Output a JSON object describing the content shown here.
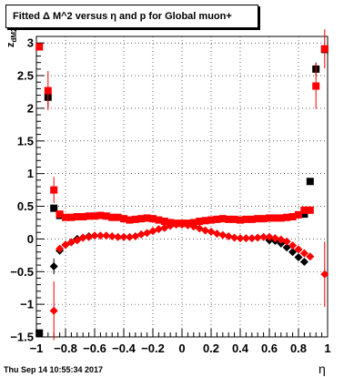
{
  "title": "Fitted Δ M^2 versus η and p for Global muon+",
  "footer": "Thu Sep 14 10:55:34 2017",
  "chart_data": {
    "type": "scatter",
    "title": "Fitted Δ M^2 versus η and p for Global muon+",
    "xlabel": "η",
    "ylabel_main": "z",
    "ylabel_sub": "dM2",
    "xlim": [
      -1,
      1
    ],
    "ylim": [
      -1.5,
      3.1
    ],
    "grid": true,
    "xticks": [
      -1,
      -0.8,
      -0.6,
      -0.4,
      -0.2,
      0,
      0.2,
      0.4,
      0.6,
      0.8,
      1
    ],
    "xtick_labels": [
      "−1",
      "−0.8",
      "−0.6",
      "−0.4",
      "−0.2",
      "0",
      "0.2",
      "0.4",
      "0.6",
      "0.8",
      "1"
    ],
    "yticks": [
      -1.5,
      -1,
      -0.5,
      0,
      0.5,
      1,
      1.5,
      2,
      2.5,
      3
    ],
    "ytick_labels": [
      "−1.5",
      "−1",
      "−0.5",
      "0",
      "0.5",
      "1",
      "1.5",
      "2",
      "2.5",
      "3"
    ],
    "colors": {
      "black": "#000000",
      "red": "#ff0000"
    },
    "series": [
      {
        "marker": "square",
        "color": "#000000",
        "x": [
          -0.98,
          -0.92,
          -0.88,
          -0.84,
          0.84,
          0.88,
          0.92,
          0.98
        ],
        "y": [
          -1.44,
          2.17,
          0.47,
          0.36,
          0.38,
          0.88,
          2.6,
          2.9
        ],
        "err": [
          0,
          0.15,
          0,
          0,
          0,
          0,
          0.1,
          0
        ]
      },
      {
        "marker": "square",
        "color": "#ff0000",
        "x": [
          -0.98,
          -0.92,
          -0.88,
          -0.84,
          -0.8,
          -0.76,
          -0.72,
          -0.68,
          -0.64,
          -0.6,
          -0.56,
          -0.52,
          -0.48,
          -0.44,
          -0.4,
          -0.36,
          -0.32,
          -0.28,
          -0.24,
          -0.2,
          -0.16,
          -0.12,
          -0.08,
          -0.04,
          0,
          0.04,
          0.08,
          0.12,
          0.16,
          0.2,
          0.24,
          0.28,
          0.32,
          0.36,
          0.4,
          0.44,
          0.48,
          0.52,
          0.56,
          0.6,
          0.64,
          0.68,
          0.72,
          0.76,
          0.8,
          0.84,
          0.88,
          0.92,
          0.98
        ],
        "y": [
          2.94,
          2.27,
          0.75,
          0.38,
          0.33,
          0.33,
          0.34,
          0.34,
          0.35,
          0.35,
          0.36,
          0.35,
          0.33,
          0.33,
          0.31,
          0.29,
          0.3,
          0.31,
          0.32,
          0.31,
          0.29,
          0.27,
          0.25,
          0.24,
          0.24,
          0.24,
          0.25,
          0.27,
          0.28,
          0.29,
          0.3,
          0.31,
          0.3,
          0.3,
          0.29,
          0.3,
          0.3,
          0.31,
          0.31,
          0.32,
          0.32,
          0.32,
          0.33,
          0.34,
          0.37,
          0.44,
          0.44,
          2.34,
          2.91
        ],
        "err": [
          0,
          0.3,
          0.2,
          0,
          0,
          0,
          0,
          0,
          0,
          0,
          0,
          0,
          0,
          0,
          0,
          0,
          0,
          0,
          0,
          0,
          0,
          0,
          0,
          0,
          0,
          0,
          0,
          0,
          0,
          0,
          0,
          0,
          0,
          0,
          0,
          0,
          0,
          0,
          0,
          0,
          0,
          0,
          0,
          0,
          0,
          0,
          0,
          0.35,
          0.3
        ]
      },
      {
        "marker": "diamond",
        "color": "#000000",
        "x": [
          -0.88,
          -0.84,
          -0.8,
          -0.76,
          -0.72,
          -0.68,
          -0.64,
          0.6,
          0.64,
          0.68,
          0.72,
          0.76,
          0.8,
          0.84
        ],
        "y": [
          -0.42,
          -0.18,
          -0.09,
          -0.05,
          0.0,
          0.02,
          0.04,
          -0.02,
          -0.03,
          -0.07,
          -0.13,
          -0.2,
          -0.28,
          -0.35
        ],
        "err": [
          0.12,
          0,
          0,
          0,
          0,
          0,
          0,
          0,
          0,
          0,
          0,
          0,
          0,
          0
        ]
      },
      {
        "marker": "diamond",
        "color": "#ff0000",
        "x": [
          -0.88,
          -0.84,
          -0.8,
          -0.76,
          -0.72,
          -0.68,
          -0.64,
          -0.6,
          -0.56,
          -0.52,
          -0.48,
          -0.44,
          -0.4,
          -0.36,
          -0.32,
          -0.28,
          -0.24,
          -0.2,
          -0.16,
          -0.12,
          -0.08,
          -0.04,
          0,
          0.04,
          0.08,
          0.12,
          0.16,
          0.2,
          0.24,
          0.28,
          0.32,
          0.36,
          0.4,
          0.44,
          0.48,
          0.52,
          0.56,
          0.6,
          0.64,
          0.68,
          0.72,
          0.76,
          0.8,
          0.84,
          0.88,
          0.98
        ],
        "y": [
          -1.1,
          -0.15,
          -0.09,
          -0.05,
          -0.02,
          0.02,
          0.03,
          0.05,
          0.05,
          0.05,
          0.04,
          0.03,
          0.03,
          0.03,
          0.04,
          0.07,
          0.09,
          0.12,
          0.15,
          0.17,
          0.2,
          0.22,
          0.22,
          0.21,
          0.19,
          0.16,
          0.13,
          0.11,
          0.08,
          0.06,
          0.04,
          0.02,
          0.01,
          0.01,
          0.01,
          0.02,
          0.03,
          0.03,
          0.01,
          -0.01,
          -0.04,
          -0.1,
          -0.16,
          -0.22,
          -0.27,
          -0.54
        ],
        "err": [
          0.45,
          0,
          0,
          0,
          0,
          0,
          0,
          0,
          0,
          0,
          0,
          0,
          0,
          0,
          0,
          0,
          0,
          0,
          0,
          0,
          0,
          0,
          0,
          0,
          0,
          0,
          0,
          0,
          0,
          0,
          0,
          0,
          0,
          0,
          0,
          0,
          0,
          0,
          0,
          0,
          0,
          0,
          0,
          0,
          0,
          0.5
        ]
      }
    ]
  }
}
